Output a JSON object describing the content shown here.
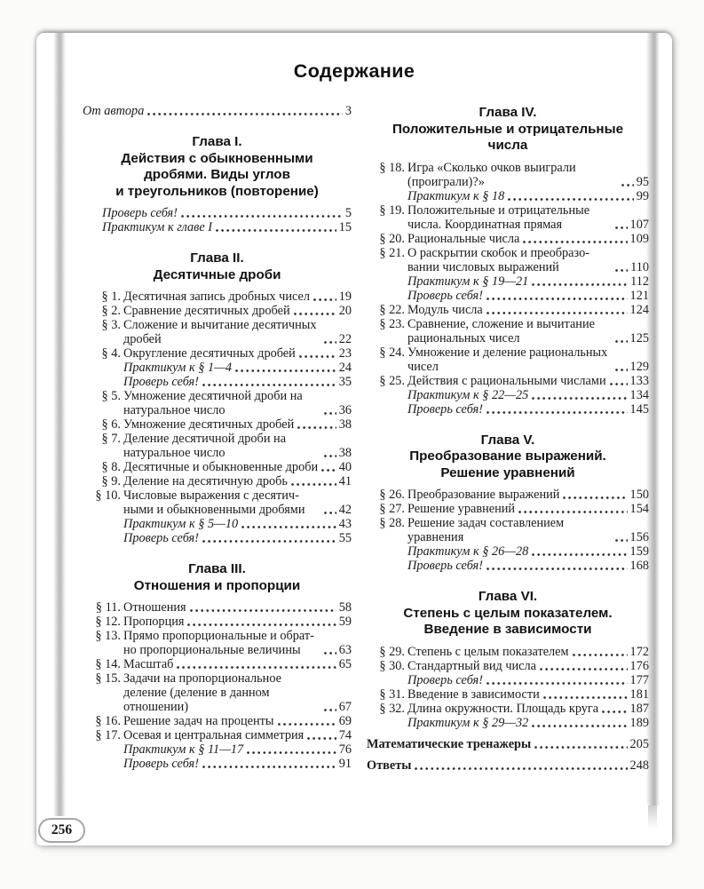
{
  "page": {
    "title": "Содержание",
    "page_number": "256"
  },
  "columns": [
    {
      "side": "left",
      "blocks": [
        {
          "entries": [
            {
              "title": "От автора",
              "page": "3",
              "italic": true
            }
          ]
        },
        {
          "heading": "Глава I.\nДействия с обыкновенными\nдробями. Виды углов\nи треугольников (повторение)",
          "entries": [
            {
              "title": "Проверь себя!",
              "page": "5",
              "italic": true
            },
            {
              "title": "Практикум к главе I",
              "page": "15",
              "italic": true
            }
          ]
        },
        {
          "heading": "Глава II.\nДесятичные дроби",
          "entries": [
            {
              "label": "§ 1.",
              "title": "Десятичная запись дробных чисел",
              "page": "19"
            },
            {
              "label": "§ 2.",
              "title": "Сравнение десятичных дробей",
              "page": "20"
            },
            {
              "label": "§ 3.",
              "title": "Сложение и вычитание десятичных дробей",
              "page": "22"
            },
            {
              "label": "§ 4.",
              "title": "Округление десятичных дробей",
              "page": "23"
            },
            {
              "label": "",
              "title": "Практикум к § 1—4",
              "page": "24",
              "italic": true
            },
            {
              "label": "",
              "title": "Проверь себя!",
              "page": "35",
              "italic": true
            },
            {
              "label": "§ 5.",
              "title": "Умножение десятичной дроби на натуральное число",
              "page": "36"
            },
            {
              "label": "§ 6.",
              "title": "Умножение десятичных дробей",
              "page": "38"
            },
            {
              "label": "§ 7.",
              "title": "Деление десятичной дроби на натуральное число",
              "page": "38"
            },
            {
              "label": "§ 8.",
              "title": "Десятичные и обыкновенные дроби",
              "page": "40"
            },
            {
              "label": "§ 9.",
              "title": "Деление на десятичную дробь",
              "page": "41"
            },
            {
              "label": "§ 10.",
              "title": "Числовые выражения с десятич­ными и обыкновенными дробями",
              "page": "42"
            },
            {
              "label": "",
              "title": "Практикум к § 5—10",
              "page": "43",
              "italic": true
            },
            {
              "label": "",
              "title": "Проверь себя!",
              "page": "55",
              "italic": true
            }
          ]
        },
        {
          "heading": "Глава III.\nОтношения и пропорции",
          "entries": [
            {
              "label": "§ 11.",
              "title": "Отношения",
              "page": "58"
            },
            {
              "label": "§ 12.",
              "title": "Пропорция",
              "page": "59"
            },
            {
              "label": "§ 13.",
              "title": "Прямо пропорциональные и обрат­но пропорциональные величины",
              "page": "63"
            },
            {
              "label": "§ 14.",
              "title": "Масштаб",
              "page": "65"
            },
            {
              "label": "§ 15.",
              "title": "Задачи на пропорциональное деление (деление в данном отношении)",
              "page": "67"
            },
            {
              "label": "§ 16.",
              "title": "Решение задач на проценты",
              "page": "69"
            },
            {
              "label": "§ 17.",
              "title": "Осевая и центральная симметрия",
              "page": "74"
            },
            {
              "label": "",
              "title": "Практикум к § 11—17",
              "page": "76",
              "italic": true
            },
            {
              "label": "",
              "title": "Проверь себя!",
              "page": "91",
              "italic": true
            }
          ]
        }
      ]
    },
    {
      "side": "right",
      "blocks": [
        {
          "heading": "Глава IV.\nПоложительные и отрицательные\nчисла",
          "entries": [
            {
              "label": "§ 18.",
              "title": "Игра «Сколько очков выиграли (проиграли)?»",
              "page": "95"
            },
            {
              "label": "",
              "title": "Практикум к § 18",
              "page": "99",
              "italic": true
            },
            {
              "label": "§ 19.",
              "title": "Положительные и отрицательные числа. Координатная прямая",
              "page": "107"
            },
            {
              "label": "§ 20.",
              "title": "Рациональные числа",
              "page": "109"
            },
            {
              "label": "§ 21.",
              "title": "О раскрытии скобок и преобразо­вании числовых выражений",
              "page": "110"
            },
            {
              "label": "",
              "title": "Практикум к § 19—21",
              "page": "112",
              "italic": true
            },
            {
              "label": "",
              "title": "Проверь себя!",
              "page": "121",
              "italic": true
            },
            {
              "label": "§ 22.",
              "title": "Модуль числа",
              "page": "124"
            },
            {
              "label": "§ 23.",
              "title": "Сравнение, сложение и вычитание рациональных чисел",
              "page": "125"
            },
            {
              "label": "§ 24.",
              "title": "Умножение и деление рациональ­ных чисел",
              "page": "129"
            },
            {
              "label": "§ 25.",
              "title": "Действия с рациональными чис­лами",
              "page": "133"
            },
            {
              "label": "",
              "title": "Практикум к § 22—25",
              "page": "134",
              "italic": true
            },
            {
              "label": "",
              "title": "Проверь себя!",
              "page": "145",
              "italic": true
            }
          ]
        },
        {
          "heading": "Глава V.\nПреобразование выражений.\nРешение уравнений",
          "entries": [
            {
              "label": "§ 26.",
              "title": "Преобразование выражений",
              "page": "150"
            },
            {
              "label": "§ 27.",
              "title": "Решение уравнений",
              "page": "154"
            },
            {
              "label": "§ 28.",
              "title": "Решение задач составлением уравнения",
              "page": "156"
            },
            {
              "label": "",
              "title": "Практикум к § 26—28",
              "page": "159",
              "italic": true
            },
            {
              "label": "",
              "title": "Проверь себя!",
              "page": "168",
              "italic": true
            }
          ]
        },
        {
          "heading": "Глава VI.\nСтепень с целым показателем.\nВведение в зависимости",
          "entries": [
            {
              "label": "§ 29.",
              "title": "Степень с целым показателем",
              "page": "172"
            },
            {
              "label": "§ 30.",
              "title": "Стандартный вид числа",
              "page": "176"
            },
            {
              "label": "",
              "title": "Проверь себя!",
              "page": "177",
              "italic": true
            },
            {
              "label": "§ 31.",
              "title": "Введение в зависимости",
              "page": "181"
            },
            {
              "label": "§ 32.",
              "title": "Длина окружности. Площадь круга",
              "page": "187"
            },
            {
              "label": "",
              "title": "Практикум к § 29—32",
              "page": "189",
              "italic": true
            }
          ]
        },
        {
          "spaced": true,
          "entries": [
            {
              "title": "Математические тренажеры",
              "page": "205",
              "bold": true
            }
          ]
        },
        {
          "spaced": true,
          "entries": [
            {
              "title": "Ответы",
              "page": "248",
              "bold": true
            }
          ]
        }
      ]
    }
  ]
}
